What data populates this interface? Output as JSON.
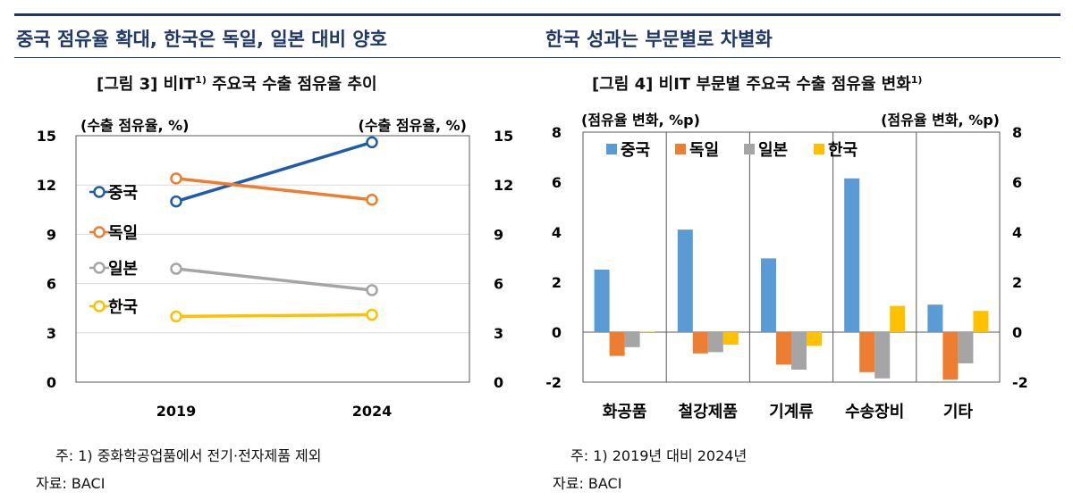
{
  "header": {
    "left_title": "중국 점유율 확대, 한국은 독일, 일본 대비 양호",
    "right_title": "한국 성과는 부문별로 차별화"
  },
  "chart_data": [
    {
      "type": "line",
      "title": "[그림 3] 비IT",
      "title_sup": "1)",
      "title_rest": " 주요국 수출 점유율 추이",
      "ylabel_left": "(수출 점유율, %)",
      "ylabel_right": "(수출 점유율, %)",
      "x": [
        "2019",
        "2024"
      ],
      "ylim": [
        0,
        15
      ],
      "yticks": [
        "0",
        "3",
        "6",
        "9",
        "12",
        "15"
      ],
      "series": [
        {
          "name": "중국",
          "values": [
            11.0,
            14.6
          ],
          "color": "#1f5ba8"
        },
        {
          "name": "독일",
          "values": [
            12.4,
            11.1
          ],
          "color": "#ed7d31"
        },
        {
          "name": "일본",
          "values": [
            6.9,
            5.6
          ],
          "color": "#a5a5a5"
        },
        {
          "name": "한국",
          "values": [
            4.0,
            4.1
          ],
          "color": "#ffc000"
        }
      ],
      "grid": true,
      "legend_position": "left"
    },
    {
      "type": "bar",
      "title": "[그림 4] 비IT 부문별 주요국 수출 점유율 변화",
      "title_sup": "1)",
      "ylabel_left": "(점유율 변화, %p)",
      "ylabel_right": "(점유율 변화, %p)",
      "categories": [
        "화공품",
        "철강제품",
        "기계류",
        "수송장비",
        "기타"
      ],
      "ylim": [
        -2,
        8
      ],
      "yticks": [
        "-2",
        "0",
        "2",
        "4",
        "6",
        "8"
      ],
      "series": [
        {
          "name": "중국",
          "values": [
            2.5,
            4.1,
            2.95,
            6.15,
            1.1
          ],
          "color": "#5b9bd5"
        },
        {
          "name": "독일",
          "values": [
            -0.95,
            -0.85,
            -1.3,
            -1.6,
            -1.9
          ],
          "color": "#ed7d31"
        },
        {
          "name": "일본",
          "values": [
            -0.6,
            -0.8,
            -1.5,
            -1.85,
            -1.25
          ],
          "color": "#a5a5a5"
        },
        {
          "name": "한국",
          "values": [
            0.02,
            -0.5,
            -0.55,
            1.05,
            0.85
          ],
          "color": "#ffc000"
        }
      ],
      "legend_position": "top-left"
    }
  ],
  "notes": {
    "left_note": "주: 1) 중화학공업품에서 전기·전자제품 제외",
    "left_source": "자료: BACI",
    "right_note": "주: 1) 2019년  대비  2024년",
    "right_source": "자료: BACI"
  }
}
